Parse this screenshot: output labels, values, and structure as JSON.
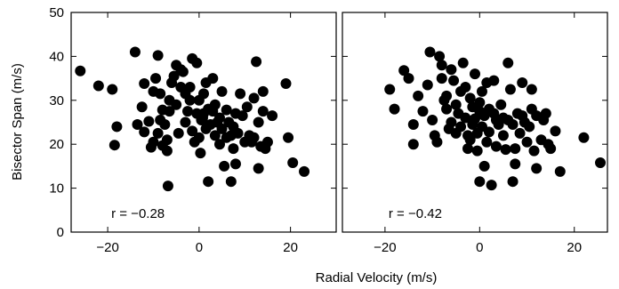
{
  "chart_data": [
    {
      "type": "scatter",
      "annotation": "r = −0.28",
      "xlim": [
        -28,
        30
      ],
      "ylim": [
        0,
        50
      ],
      "xticks": [
        -20,
        0,
        20
      ],
      "xtick_labels": [
        "−20",
        "0",
        "20"
      ],
      "yticks": [
        0,
        10,
        20,
        30,
        40,
        50
      ],
      "ytick_labels": [
        "0",
        "10",
        "20",
        "30",
        "40",
        "50"
      ],
      "points": [
        [
          -26,
          36.7
        ],
        [
          -22,
          33.3
        ],
        [
          -19,
          32.5
        ],
        [
          -18,
          24
        ],
        [
          -18.5,
          19.8
        ],
        [
          -14,
          41
        ],
        [
          -13.5,
          24.5
        ],
        [
          -12.5,
          28.5
        ],
        [
          -12,
          33.8
        ],
        [
          -12,
          22.8
        ],
        [
          -11,
          25.2
        ],
        [
          -10.5,
          19.3
        ],
        [
          -10,
          20.5
        ],
        [
          -10,
          32
        ],
        [
          -9.5,
          35
        ],
        [
          -9,
          40.2
        ],
        [
          -9,
          22.5
        ],
        [
          -8.5,
          31.5
        ],
        [
          -8.5,
          25.5
        ],
        [
          -8,
          27.8
        ],
        [
          -8,
          19.7
        ],
        [
          -7.5,
          24.5
        ],
        [
          -7,
          21
        ],
        [
          -7,
          18.5
        ],
        [
          -6.8,
          10.5
        ],
        [
          -6.5,
          30
        ],
        [
          -6.5,
          27.5
        ],
        [
          -6,
          34
        ],
        [
          -5.5,
          35.5
        ],
        [
          -5,
          38
        ],
        [
          -5,
          29
        ],
        [
          -4.5,
          22.5
        ],
        [
          -4,
          37
        ],
        [
          -4,
          33
        ],
        [
          -3.5,
          36.5
        ],
        [
          -3,
          31.5
        ],
        [
          -3,
          25
        ],
        [
          -2.5,
          27.5
        ],
        [
          -2,
          33
        ],
        [
          -2,
          30
        ],
        [
          -1.5,
          39.5
        ],
        [
          -1.5,
          23
        ],
        [
          -1,
          20.5
        ],
        [
          -0.5,
          38.5
        ],
        [
          -0.5,
          27
        ],
        [
          0,
          30
        ],
        [
          0,
          21.5
        ],
        [
          0.3,
          18
        ],
        [
          0.5,
          25.5
        ],
        [
          0.8,
          26
        ],
        [
          1,
          31.5
        ],
        [
          1,
          27
        ],
        [
          1.5,
          34
        ],
        [
          1.5,
          23.5
        ],
        [
          2,
          11.5
        ],
        [
          2,
          28
        ],
        [
          2.5,
          24.5
        ],
        [
          3,
          35
        ],
        [
          3,
          27.5
        ],
        [
          3.5,
          22
        ],
        [
          3.5,
          29
        ],
        [
          4,
          25
        ],
        [
          4.5,
          26
        ],
        [
          4.5,
          20
        ],
        [
          5,
          32
        ],
        [
          5,
          23.5
        ],
        [
          5.5,
          15
        ],
        [
          6,
          21.5
        ],
        [
          6,
          27.8
        ],
        [
          6.5,
          25
        ],
        [
          7,
          11.5
        ],
        [
          7,
          22
        ],
        [
          7.5,
          19
        ],
        [
          7.5,
          24
        ],
        [
          8,
          15.5
        ],
        [
          8,
          27
        ],
        [
          8.5,
          22.5
        ],
        [
          9,
          31.5
        ],
        [
          9.5,
          26.5
        ],
        [
          10,
          20.5
        ],
        [
          10.5,
          28.5
        ],
        [
          11,
          22
        ],
        [
          11.5,
          20.5
        ],
        [
          12,
          30.5
        ],
        [
          12,
          21.5
        ],
        [
          12.5,
          38.8
        ],
        [
          13,
          25
        ],
        [
          13,
          14.5
        ],
        [
          13.5,
          19.5
        ],
        [
          14,
          32
        ],
        [
          14,
          27.5
        ],
        [
          14.5,
          19
        ],
        [
          15,
          20.5
        ],
        [
          16,
          26.5
        ],
        [
          19,
          33.8
        ],
        [
          19.5,
          21.5
        ],
        [
          20.5,
          15.8
        ],
        [
          23,
          13.8
        ]
      ]
    },
    {
      "type": "scatter",
      "annotation": "r = −0.42",
      "xlim": [
        -29,
        27
      ],
      "ylim": [
        0,
        50
      ],
      "xticks": [
        -20,
        0,
        20
      ],
      "xtick_labels": [
        "−20",
        "0",
        "20"
      ],
      "yticks": [
        0,
        10,
        20,
        30,
        40,
        50
      ],
      "ytick_labels": [],
      "points": [
        [
          -19,
          32.5
        ],
        [
          -18,
          28
        ],
        [
          -16,
          36.8
        ],
        [
          -15,
          35
        ],
        [
          -14,
          24.5
        ],
        [
          -14,
          20
        ],
        [
          -13,
          31
        ],
        [
          -12,
          27.5
        ],
        [
          -11,
          33.5
        ],
        [
          -10.5,
          41
        ],
        [
          -10,
          25.5
        ],
        [
          -9.5,
          22
        ],
        [
          -9,
          20.5
        ],
        [
          -8.5,
          40
        ],
        [
          -8,
          38
        ],
        [
          -8,
          35
        ],
        [
          -7.5,
          30
        ],
        [
          -7,
          31
        ],
        [
          -7,
          28
        ],
        [
          -6.5,
          23.5
        ],
        [
          -6,
          37
        ],
        [
          -6,
          25
        ],
        [
          -5.5,
          34.5
        ],
        [
          -5,
          29
        ],
        [
          -5,
          22.5
        ],
        [
          -4.5,
          27
        ],
        [
          -4,
          32
        ],
        [
          -4,
          24
        ],
        [
          -3.5,
          38.5
        ],
        [
          -3,
          33
        ],
        [
          -3,
          26
        ],
        [
          -2.5,
          22
        ],
        [
          -2.5,
          19
        ],
        [
          -2,
          30.5
        ],
        [
          -2,
          21
        ],
        [
          -1.5,
          28.5
        ],
        [
          -1.5,
          24.5
        ],
        [
          -1,
          36
        ],
        [
          -1,
          25.8
        ],
        [
          -0.5,
          22.5
        ],
        [
          -0.5,
          18.5
        ],
        [
          0,
          29.5
        ],
        [
          0,
          27.5
        ],
        [
          0,
          11.5
        ],
        [
          0.5,
          32
        ],
        [
          0.5,
          24
        ],
        [
          1,
          26.5
        ],
        [
          1,
          15
        ],
        [
          1.5,
          34
        ],
        [
          1.5,
          20.5
        ],
        [
          2,
          28
        ],
        [
          2,
          22.8
        ],
        [
          2.5,
          10.7
        ],
        [
          3,
          34.5
        ],
        [
          3,
          27
        ],
        [
          3.5,
          25.5
        ],
        [
          3.5,
          19.5
        ],
        [
          4,
          24.5
        ],
        [
          4.5,
          29
        ],
        [
          5,
          26
        ],
        [
          5,
          22
        ],
        [
          5.5,
          18.8
        ],
        [
          6,
          38.5
        ],
        [
          6,
          25.5
        ],
        [
          6.5,
          32.5
        ],
        [
          7,
          24.5
        ],
        [
          7,
          11.5
        ],
        [
          7.5,
          19
        ],
        [
          7.5,
          15.5
        ],
        [
          8,
          27
        ],
        [
          8.5,
          22.5
        ],
        [
          9,
          34
        ],
        [
          9,
          26.5
        ],
        [
          9.5,
          25
        ],
        [
          10,
          20.5
        ],
        [
          10.5,
          24
        ],
        [
          11,
          32.5
        ],
        [
          11,
          28
        ],
        [
          11.5,
          18.5
        ],
        [
          12,
          14.5
        ],
        [
          12,
          26.5
        ],
        [
          13,
          21
        ],
        [
          13.5,
          25.5
        ],
        [
          14,
          27
        ],
        [
          14.5,
          20
        ],
        [
          15,
          19
        ],
        [
          16,
          23
        ],
        [
          17,
          13.8
        ],
        [
          22,
          21.5
        ],
        [
          25.5,
          15.8
        ]
      ]
    }
  ],
  "labels": {
    "ylabel": "Bisector Span (m/s)",
    "xlabel": "Radial Velocity (m/s)"
  }
}
